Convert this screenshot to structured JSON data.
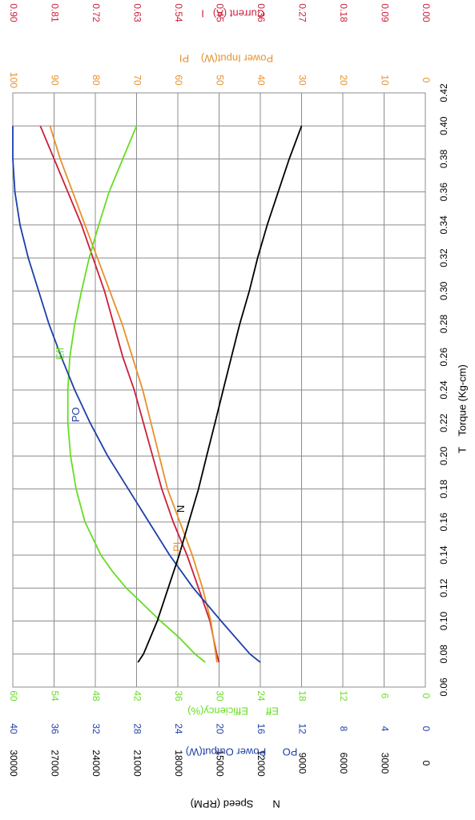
{
  "chart_data": {
    "type": "line",
    "orientation": "rotated-90-clockwise",
    "grid": true,
    "x_axis": {
      "label_symbol": "T",
      "label": "Torque (Kg-cm)",
      "range": [
        0.06,
        0.42
      ],
      "ticks": [
        "0.06",
        "0.08",
        "0.10",
        "0.12",
        "0.14",
        "0.16",
        "0.18",
        "0.20",
        "0.22",
        "0.24",
        "0.26",
        "0.28",
        "0.30",
        "0.32",
        "0.34",
        "0.36",
        "0.38",
        "0.40",
        "0.42"
      ],
      "color": "#000000"
    },
    "axes": [
      {
        "key": "I",
        "symbol": "I",
        "label": "Current (A)",
        "color": "#cc1f3a",
        "range": [
          0,
          0.9
        ],
        "ticks": [
          "0.90",
          "0.81",
          "0.72",
          "0.63",
          "0.54",
          "0.45",
          "0.36",
          "0.27",
          "0.18",
          "0.09",
          "0.00"
        ]
      },
      {
        "key": "PI",
        "symbol": "PI",
        "label": "Power Input(W)",
        "color": "#e8902a",
        "range": [
          0,
          100
        ],
        "ticks": [
          "100",
          "90",
          "80",
          "70",
          "60",
          "50",
          "40",
          "30",
          "20",
          "10",
          "0"
        ]
      },
      {
        "key": "Eff",
        "symbol": "Eff",
        "label": "Efficiency(%)",
        "color": "#66dd22",
        "range": [
          0,
          60
        ],
        "ticks": [
          "60",
          "54",
          "48",
          "42",
          "36",
          "30",
          "24",
          "18",
          "12",
          "6",
          "0"
        ]
      },
      {
        "key": "PO",
        "symbol": "PO",
        "label": "Power Output(W)",
        "color": "#1d3fa8",
        "range": [
          0,
          40
        ],
        "ticks": [
          "40",
          "36",
          "32",
          "28",
          "24",
          "20",
          "16",
          "12",
          "8",
          "4",
          "0"
        ]
      },
      {
        "key": "N",
        "symbol": "N",
        "label": "Speed (RPM)",
        "color": "#000000",
        "range": [
          0,
          30000
        ],
        "ticks": [
          "30000",
          "27000",
          "24000",
          "21000",
          "18000",
          "15000",
          "12000",
          "9000",
          "6000",
          "3000",
          "0"
        ]
      }
    ],
    "series": [
      {
        "name": "I",
        "axis": "I",
        "color": "#cc1f3a",
        "x": [
          0.075,
          0.08,
          0.1,
          0.12,
          0.14,
          0.16,
          0.18,
          0.2,
          0.22,
          0.24,
          0.26,
          0.28,
          0.3,
          0.32,
          0.34,
          0.36,
          0.38,
          0.4
        ],
        "y": [
          0.45,
          0.455,
          0.47,
          0.495,
          0.52,
          0.55,
          0.575,
          0.595,
          0.615,
          0.635,
          0.66,
          0.68,
          0.7,
          0.725,
          0.75,
          0.78,
          0.81,
          0.84
        ]
      },
      {
        "name": "PI",
        "axis": "PI",
        "color": "#e8902a",
        "x": [
          0.075,
          0.08,
          0.1,
          0.12,
          0.14,
          0.16,
          0.18,
          0.2,
          0.22,
          0.24,
          0.26,
          0.28,
          0.3,
          0.32,
          0.34,
          0.36,
          0.38,
          0.4
        ],
        "y": [
          50.5,
          50.8,
          52.0,
          54.0,
          56.5,
          59.5,
          62.5,
          64.5,
          66.5,
          68.5,
          71.0,
          73.5,
          76.5,
          79.5,
          82.5,
          85.5,
          88.5,
          91.0
        ]
      },
      {
        "name": "Eff",
        "axis": "Eff",
        "color": "#66dd22",
        "x": [
          0.075,
          0.08,
          0.09,
          0.1,
          0.11,
          0.12,
          0.13,
          0.14,
          0.16,
          0.18,
          0.2,
          0.22,
          0.24,
          0.26,
          0.28,
          0.3,
          0.32,
          0.34,
          0.36,
          0.38,
          0.4
        ],
        "y": [
          32.0,
          33.5,
          35.8,
          38.5,
          41.0,
          43.5,
          45.5,
          47.2,
          49.5,
          50.8,
          51.6,
          52.0,
          52.0,
          51.7,
          51.0,
          50.0,
          48.9,
          47.5,
          46.0,
          44.0,
          42.0
        ]
      },
      {
        "name": "PO",
        "axis": "PO",
        "color": "#1d3fa8",
        "x": [
          0.075,
          0.08,
          0.1,
          0.12,
          0.14,
          0.16,
          0.18,
          0.2,
          0.22,
          0.24,
          0.26,
          0.28,
          0.3,
          0.32,
          0.34,
          0.36,
          0.38,
          0.4
        ],
        "y": [
          16.0,
          17.0,
          19.8,
          22.5,
          24.8,
          26.8,
          28.8,
          30.8,
          32.5,
          34.0,
          35.3,
          36.5,
          37.5,
          38.5,
          39.3,
          39.8,
          40.0,
          40.0
        ]
      },
      {
        "name": "N",
        "axis": "N",
        "color": "#000000",
        "x": [
          0.075,
          0.08,
          0.1,
          0.12,
          0.14,
          0.16,
          0.18,
          0.2,
          0.22,
          0.24,
          0.26,
          0.28,
          0.3,
          0.32,
          0.34,
          0.36,
          0.38,
          0.4
        ],
        "y": [
          20900,
          20500,
          19500,
          18700,
          17900,
          17200,
          16500,
          15900,
          15300,
          14700,
          14100,
          13500,
          12800,
          12200,
          11500,
          10700,
          9900,
          9000
        ]
      }
    ],
    "annotations": [
      {
        "text": "PO",
        "series": "PO",
        "x": 0.225
      },
      {
        "text": "Eff",
        "series": "Eff",
        "x": 0.262
      },
      {
        "text": "N",
        "series": "N",
        "x": 0.168
      },
      {
        "text": "PI",
        "series": "PI",
        "x": 0.145
      }
    ]
  }
}
